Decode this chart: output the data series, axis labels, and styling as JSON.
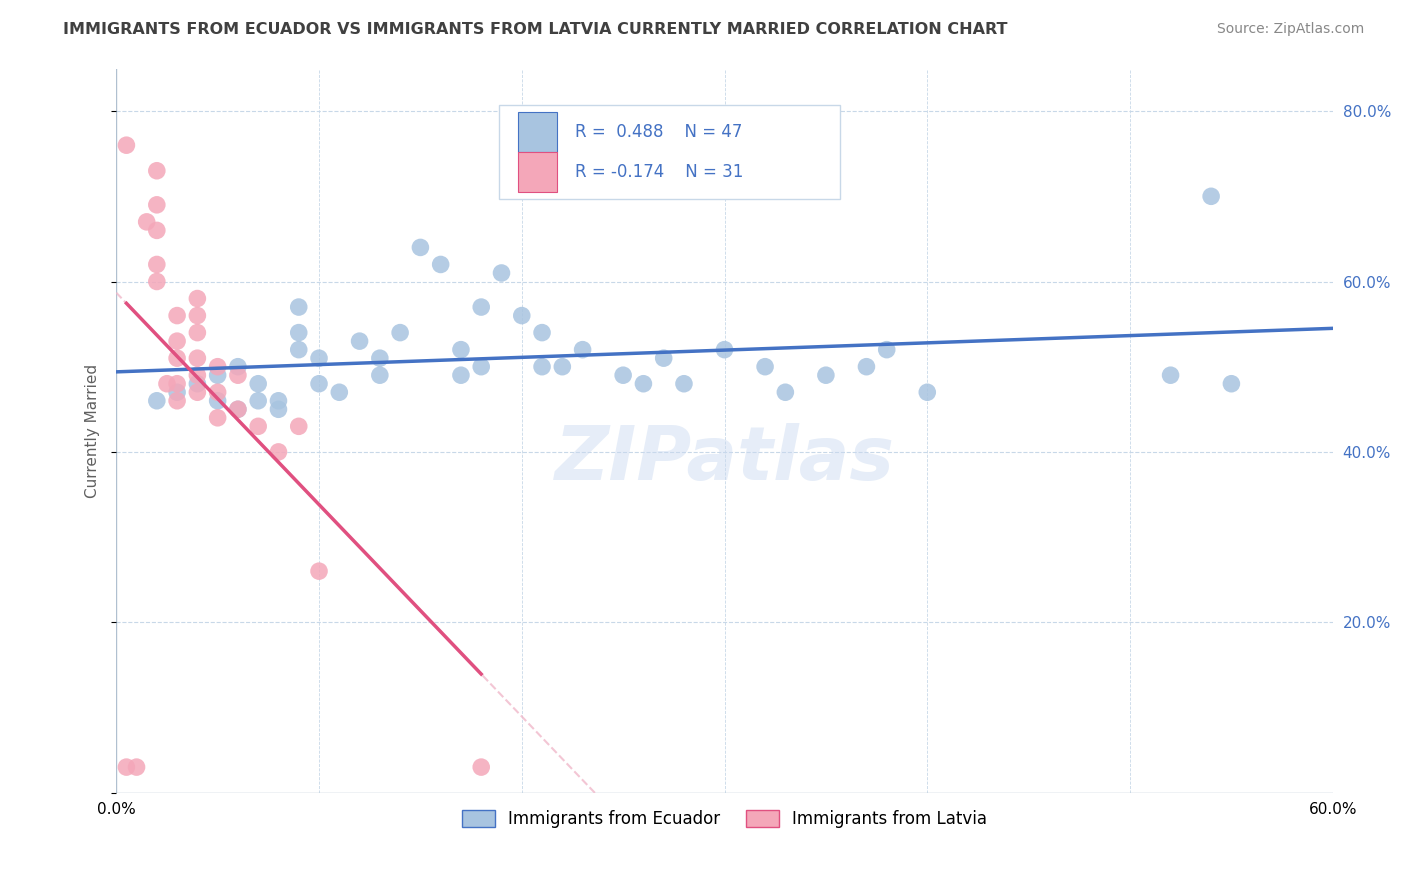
{
  "title": "IMMIGRANTS FROM ECUADOR VS IMMIGRANTS FROM LATVIA CURRENTLY MARRIED CORRELATION CHART",
  "source": "Source: ZipAtlas.com",
  "ylabel": "Currently Married",
  "xlim": [
    0.0,
    0.6
  ],
  "ylim": [
    0.0,
    0.85
  ],
  "ecuador_R": 0.488,
  "ecuador_N": 47,
  "latvia_R": -0.174,
  "latvia_N": 31,
  "ecuador_color": "#a8c4e0",
  "latvia_color": "#f4a7b9",
  "ecuador_line_color": "#4472c4",
  "latvia_line_color": "#e05080",
  "latvia_line_dashed_color": "#f0b8ca",
  "background_color": "#ffffff",
  "grid_color": "#c8d8e8",
  "title_color": "#404040",
  "right_axis_color": "#4472c4",
  "ecuador_x": [
    0.02,
    0.03,
    0.04,
    0.05,
    0.05,
    0.06,
    0.06,
    0.07,
    0.07,
    0.08,
    0.08,
    0.09,
    0.09,
    0.09,
    0.1,
    0.1,
    0.11,
    0.12,
    0.13,
    0.13,
    0.14,
    0.15,
    0.16,
    0.17,
    0.17,
    0.18,
    0.18,
    0.19,
    0.2,
    0.21,
    0.21,
    0.22,
    0.23,
    0.25,
    0.26,
    0.27,
    0.28,
    0.3,
    0.32,
    0.33,
    0.35,
    0.37,
    0.38,
    0.4,
    0.52,
    0.54,
    0.55
  ],
  "ecuador_y": [
    0.46,
    0.47,
    0.48,
    0.46,
    0.49,
    0.45,
    0.5,
    0.46,
    0.48,
    0.45,
    0.46,
    0.52,
    0.54,
    0.57,
    0.48,
    0.51,
    0.47,
    0.53,
    0.49,
    0.51,
    0.54,
    0.64,
    0.62,
    0.49,
    0.52,
    0.5,
    0.57,
    0.61,
    0.56,
    0.5,
    0.54,
    0.5,
    0.52,
    0.49,
    0.48,
    0.51,
    0.48,
    0.52,
    0.5,
    0.47,
    0.49,
    0.5,
    0.52,
    0.47,
    0.49,
    0.7,
    0.48
  ],
  "latvia_x": [
    0.005,
    0.005,
    0.01,
    0.015,
    0.02,
    0.02,
    0.02,
    0.02,
    0.02,
    0.025,
    0.03,
    0.03,
    0.03,
    0.03,
    0.03,
    0.04,
    0.04,
    0.04,
    0.04,
    0.04,
    0.04,
    0.05,
    0.05,
    0.05,
    0.06,
    0.06,
    0.07,
    0.08,
    0.09,
    0.1,
    0.18
  ],
  "latvia_y": [
    0.76,
    0.03,
    0.03,
    0.67,
    0.6,
    0.62,
    0.66,
    0.69,
    0.73,
    0.48,
    0.46,
    0.48,
    0.51,
    0.53,
    0.56,
    0.47,
    0.49,
    0.51,
    0.54,
    0.56,
    0.58,
    0.44,
    0.47,
    0.5,
    0.45,
    0.49,
    0.43,
    0.4,
    0.43,
    0.26,
    0.03
  ]
}
